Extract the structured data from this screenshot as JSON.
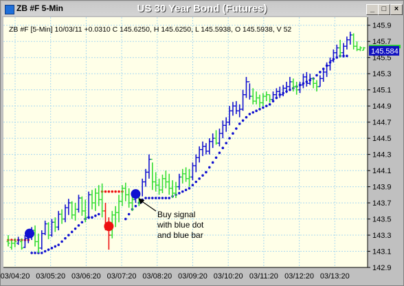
{
  "window": {
    "title": "ZB #F 5-Min",
    "chart_title": "US 30 Year  Bond (Futures)",
    "min_glyph": "_",
    "max_glyph": "□",
    "close_glyph": "×"
  },
  "info_line": "ZB #F [5-Min] 10/03/11  +0.0310 C 145.6250, H 145.6250, L 145.5938, O 145.5938, V 52",
  "annotation": {
    "lines": [
      "Buy signal",
      "with blue dot",
      "and blue bar"
    ]
  },
  "colors": {
    "background": "#ffffe8",
    "grid": "#a8d8f0",
    "up_bar": "#1010d0",
    "neutral_bar": "#33dd33",
    "down_bar": "#ee1010",
    "stop_blue": "#1010d0",
    "stop_red": "#ee1010",
    "price_tag": "#1010c0"
  },
  "chart_data": {
    "type": "bar",
    "y_ticks": [
      "142.9",
      "143.1",
      "143.3",
      "143.5",
      "143.7",
      "143.9",
      "144.1",
      "144.3",
      "144.5",
      "144.7",
      "144.9",
      "145.1",
      "145.3",
      "145.5",
      "145.7",
      "145.9"
    ],
    "x_ticks": [
      "03/04:20",
      "03/05:20",
      "03/06:20",
      "03/07:20",
      "03/08:20",
      "03/09:20",
      "03/10:20",
      "03/11:20",
      "03/12:20",
      "03/13:20"
    ],
    "ylim": [
      142.9,
      146.0
    ],
    "last_price_label": "145.584",
    "last_price": 145.584,
    "green_line_price": 145.64,
    "signals": [
      {
        "type": "sell",
        "color": "red",
        "bar": 30,
        "price": 143.41
      },
      {
        "type": "buy",
        "color": "blue",
        "bar": 38,
        "price": 143.81
      }
    ],
    "bars": [
      [
        143.3,
        143.16,
        143.22,
        143.2,
        "g"
      ],
      [
        143.24,
        143.12,
        143.15,
        143.2,
        "g"
      ],
      [
        143.26,
        143.15,
        143.2,
        143.22,
        "g"
      ],
      [
        143.28,
        143.18,
        143.2,
        143.24,
        "b"
      ],
      [
        143.26,
        143.12,
        143.22,
        143.14,
        "g"
      ],
      [
        143.3,
        143.14,
        143.15,
        143.26,
        "b"
      ],
      [
        143.33,
        143.2,
        143.26,
        143.3,
        "b"
      ],
      [
        143.4,
        143.24,
        143.28,
        143.36,
        "b"
      ],
      [
        143.42,
        143.16,
        143.36,
        143.22,
        "g"
      ],
      [
        143.32,
        143.08,
        143.22,
        143.14,
        "g"
      ],
      [
        143.36,
        143.12,
        143.14,
        143.32,
        "b"
      ],
      [
        143.48,
        143.3,
        143.32,
        143.44,
        "b"
      ],
      [
        143.46,
        143.25,
        143.44,
        143.3,
        "g"
      ],
      [
        143.5,
        143.28,
        143.3,
        143.46,
        "b"
      ],
      [
        143.52,
        143.34,
        143.46,
        143.4,
        "g"
      ],
      [
        143.6,
        143.36,
        143.4,
        143.56,
        "b"
      ],
      [
        143.62,
        143.44,
        143.56,
        143.5,
        "g"
      ],
      [
        143.68,
        143.46,
        143.5,
        143.64,
        "b"
      ],
      [
        143.75,
        143.55,
        143.64,
        143.7,
        "b"
      ],
      [
        143.72,
        143.5,
        143.7,
        143.55,
        "g"
      ],
      [
        143.7,
        143.48,
        143.55,
        143.62,
        "g"
      ],
      [
        143.8,
        143.58,
        143.62,
        143.76,
        "b"
      ],
      [
        143.78,
        143.54,
        143.76,
        143.6,
        "g"
      ],
      [
        143.74,
        143.46,
        143.6,
        143.52,
        "g"
      ],
      [
        143.84,
        143.5,
        143.52,
        143.8,
        "b"
      ],
      [
        143.86,
        143.62,
        143.8,
        143.7,
        "g"
      ],
      [
        143.88,
        143.6,
        143.7,
        143.82,
        "g"
      ],
      [
        143.92,
        143.66,
        143.82,
        143.74,
        "g"
      ],
      [
        143.94,
        143.52,
        143.74,
        143.6,
        "g"
      ],
      [
        143.7,
        143.36,
        143.6,
        143.42,
        "r"
      ],
      [
        143.52,
        143.12,
        143.42,
        143.3,
        "r"
      ],
      [
        143.6,
        143.26,
        143.3,
        143.55,
        "g"
      ],
      [
        143.66,
        143.4,
        143.55,
        143.58,
        "g"
      ],
      [
        143.8,
        143.46,
        143.58,
        143.72,
        "g"
      ],
      [
        143.92,
        143.66,
        143.72,
        143.88,
        "g"
      ],
      [
        143.95,
        143.72,
        143.88,
        143.8,
        "g"
      ],
      [
        143.88,
        143.64,
        143.8,
        143.7,
        "g"
      ],
      [
        143.8,
        143.6,
        143.7,
        143.74,
        "g"
      ],
      [
        143.86,
        143.7,
        143.74,
        143.82,
        "b"
      ],
      [
        143.8,
        143.66,
        143.82,
        143.7,
        "g"
      ],
      [
        144.0,
        143.78,
        143.7,
        143.96,
        "b"
      ],
      [
        144.12,
        143.9,
        143.96,
        144.08,
        "b"
      ],
      [
        144.3,
        144.0,
        144.08,
        144.24,
        "b"
      ],
      [
        144.2,
        143.86,
        144.24,
        143.96,
        "g"
      ],
      [
        144.08,
        143.84,
        143.96,
        143.92,
        "g"
      ],
      [
        144.0,
        143.8,
        143.92,
        143.86,
        "g"
      ],
      [
        144.05,
        143.82,
        143.86,
        144.0,
        "g"
      ],
      [
        144.1,
        143.88,
        144.0,
        143.96,
        "g"
      ],
      [
        144.06,
        143.8,
        143.96,
        143.88,
        "g"
      ],
      [
        143.98,
        143.76,
        143.88,
        143.82,
        "g"
      ],
      [
        143.96,
        143.76,
        143.82,
        143.9,
        "g"
      ],
      [
        144.06,
        143.86,
        143.9,
        144.02,
        "b"
      ],
      [
        144.12,
        143.94,
        144.02,
        144.06,
        "g"
      ],
      [
        144.14,
        143.96,
        144.06,
        144.0,
        "g"
      ],
      [
        144.12,
        143.9,
        144.0,
        144.02,
        "g"
      ],
      [
        144.2,
        143.98,
        144.02,
        144.16,
        "b"
      ],
      [
        144.3,
        144.08,
        144.16,
        144.26,
        "b"
      ],
      [
        144.4,
        144.2,
        144.26,
        144.36,
        "b"
      ],
      [
        144.46,
        144.28,
        144.36,
        144.4,
        "b"
      ],
      [
        144.44,
        144.3,
        144.4,
        144.34,
        "b"
      ],
      [
        144.5,
        144.3,
        144.34,
        144.46,
        "b"
      ],
      [
        144.56,
        144.38,
        144.46,
        144.5,
        "b"
      ],
      [
        144.6,
        144.42,
        144.5,
        144.44,
        "g"
      ],
      [
        144.62,
        144.4,
        144.44,
        144.56,
        "b"
      ],
      [
        144.72,
        144.5,
        144.56,
        144.66,
        "b"
      ],
      [
        144.76,
        144.58,
        144.66,
        144.7,
        "b"
      ],
      [
        144.9,
        144.66,
        144.7,
        144.84,
        "b"
      ],
      [
        144.95,
        144.78,
        144.84,
        144.9,
        "b"
      ],
      [
        144.96,
        144.8,
        144.9,
        144.84,
        "b"
      ],
      [
        144.92,
        144.76,
        144.84,
        144.86,
        "b"
      ],
      [
        145.1,
        144.84,
        144.86,
        145.04,
        "b"
      ],
      [
        145.26,
        145.0,
        145.04,
        145.2,
        "b"
      ],
      [
        145.18,
        144.98,
        145.2,
        145.02,
        "b"
      ],
      [
        145.12,
        144.92,
        145.02,
        144.96,
        "g"
      ],
      [
        145.08,
        144.92,
        144.96,
        145.0,
        "g"
      ],
      [
        145.04,
        144.88,
        145.0,
        144.94,
        "g"
      ],
      [
        145.06,
        144.9,
        144.94,
        145.02,
        "g"
      ],
      [
        145.08,
        144.96,
        145.02,
        145.04,
        "g"
      ],
      [
        145.04,
        144.94,
        145.04,
        144.98,
        "g"
      ],
      [
        145.08,
        144.96,
        144.98,
        145.04,
        "b"
      ],
      [
        145.12,
        145.0,
        145.04,
        145.08,
        "b"
      ],
      [
        145.14,
        145.0,
        145.08,
        145.04,
        "b"
      ],
      [
        145.16,
        145.02,
        145.04,
        145.12,
        "b"
      ],
      [
        145.2,
        145.06,
        145.12,
        145.14,
        "b"
      ],
      [
        145.26,
        145.1,
        145.14,
        145.2,
        "b"
      ],
      [
        145.24,
        145.08,
        145.2,
        145.14,
        "g"
      ],
      [
        145.2,
        145.04,
        145.14,
        145.1,
        "g"
      ],
      [
        145.2,
        145.06,
        145.1,
        145.16,
        "b"
      ],
      [
        145.3,
        145.12,
        145.16,
        145.26,
        "b"
      ],
      [
        145.32,
        145.14,
        145.26,
        145.18,
        "b"
      ],
      [
        145.3,
        145.16,
        145.18,
        145.24,
        "b"
      ],
      [
        145.24,
        145.12,
        145.24,
        145.18,
        "g"
      ],
      [
        145.22,
        145.08,
        145.18,
        145.14,
        "g"
      ],
      [
        145.28,
        145.14,
        145.14,
        145.24,
        "b"
      ],
      [
        145.36,
        145.2,
        145.24,
        145.32,
        "b"
      ],
      [
        145.44,
        145.26,
        145.32,
        145.4,
        "b"
      ],
      [
        145.5,
        145.34,
        145.4,
        145.46,
        "b"
      ],
      [
        145.6,
        145.44,
        145.46,
        145.56,
        "b"
      ],
      [
        145.66,
        145.5,
        145.56,
        145.62,
        "b"
      ],
      [
        145.72,
        145.5,
        145.62,
        145.56,
        "g"
      ],
      [
        145.68,
        145.5,
        145.56,
        145.64,
        "b"
      ],
      [
        145.76,
        145.6,
        145.64,
        145.72,
        "b"
      ],
      [
        145.82,
        145.66,
        145.72,
        145.78,
        "b"
      ],
      [
        145.8,
        145.6,
        145.78,
        145.64,
        "g"
      ],
      [
        145.7,
        145.58,
        145.64,
        145.6,
        "g"
      ],
      [
        145.64,
        145.58,
        145.6,
        145.62,
        "g"
      ],
      [
        145.63,
        145.59,
        145.59,
        145.62,
        "g"
      ]
    ],
    "stops": [
      [
        143.24,
        "r"
      ],
      [
        143.24,
        "r"
      ],
      [
        143.24,
        "r"
      ],
      [
        143.24,
        "r"
      ],
      [
        143.24,
        "r"
      ],
      [
        143.24,
        "r"
      ],
      [
        143.24,
        "r"
      ],
      [
        143.08,
        "b"
      ],
      [
        143.08,
        "b"
      ],
      [
        143.08,
        "b"
      ],
      [
        143.08,
        "b"
      ],
      [
        143.1,
        "b"
      ],
      [
        143.12,
        "b"
      ],
      [
        143.14,
        "b"
      ],
      [
        143.16,
        "b"
      ],
      [
        143.18,
        "b"
      ],
      [
        143.22,
        "b"
      ],
      [
        143.26,
        "b"
      ],
      [
        143.3,
        "b"
      ],
      [
        143.34,
        "b"
      ],
      [
        143.38,
        "b"
      ],
      [
        143.42,
        "b"
      ],
      [
        143.46,
        "b"
      ],
      [
        143.5,
        "b"
      ],
      [
        143.52,
        "b"
      ],
      [
        143.52,
        "b"
      ],
      [
        143.54,
        "b"
      ],
      [
        143.56,
        "b"
      ],
      [
        143.84,
        "r"
      ],
      [
        143.84,
        "r"
      ],
      [
        143.84,
        "r"
      ],
      [
        143.84,
        "r"
      ],
      [
        143.84,
        "r"
      ],
      [
        143.84,
        "r"
      ],
      [
        143.84,
        "r"
      ],
      [
        143.5,
        "b"
      ],
      [
        143.56,
        "b"
      ],
      [
        143.62,
        "b"
      ],
      [
        143.66,
        "b"
      ],
      [
        143.7,
        "b"
      ],
      [
        143.74,
        "b"
      ],
      [
        143.76,
        "b"
      ],
      [
        143.76,
        "b"
      ],
      [
        143.76,
        "b"
      ],
      [
        143.76,
        "b"
      ],
      [
        143.76,
        "b"
      ],
      [
        143.76,
        "b"
      ],
      [
        143.76,
        "b"
      ],
      [
        143.76,
        "b"
      ],
      [
        143.78,
        "b"
      ],
      [
        143.8,
        "b"
      ],
      [
        143.82,
        "b"
      ],
      [
        143.84,
        "b"
      ],
      [
        143.86,
        "b"
      ],
      [
        143.88,
        "b"
      ],
      [
        143.92,
        "b"
      ],
      [
        143.96,
        "b"
      ],
      [
        144.0,
        "b"
      ],
      [
        144.04,
        "b"
      ],
      [
        144.08,
        "b"
      ],
      [
        144.14,
        "b"
      ],
      [
        144.2,
        "b"
      ],
      [
        144.26,
        "b"
      ],
      [
        144.32,
        "b"
      ],
      [
        144.38,
        "b"
      ],
      [
        144.44,
        "b"
      ],
      [
        144.5,
        "b"
      ],
      [
        144.56,
        "b"
      ],
      [
        144.62,
        "b"
      ],
      [
        144.68,
        "b"
      ],
      [
        144.72,
        "b"
      ],
      [
        144.76,
        "b"
      ],
      [
        144.8,
        "b"
      ],
      [
        144.82,
        "b"
      ],
      [
        144.84,
        "b"
      ],
      [
        144.86,
        "b"
      ],
      [
        144.88,
        "b"
      ],
      [
        144.9,
        "b"
      ],
      [
        144.92,
        "b"
      ],
      [
        144.96,
        "b"
      ],
      [
        145.0,
        "b"
      ],
      [
        145.04,
        "b"
      ],
      [
        145.06,
        "b"
      ],
      [
        145.08,
        "b"
      ],
      [
        145.1,
        "b"
      ],
      [
        145.12,
        "b"
      ],
      [
        145.14,
        "b"
      ],
      [
        145.16,
        "b"
      ],
      [
        145.18,
        "b"
      ],
      [
        145.2,
        "b"
      ],
      [
        145.22,
        "b"
      ],
      [
        145.24,
        "b"
      ],
      [
        145.28,
        "b"
      ],
      [
        145.32,
        "b"
      ],
      [
        145.36,
        "b"
      ],
      [
        145.4,
        "b"
      ],
      [
        145.44,
        "b"
      ],
      [
        145.48,
        "b"
      ],
      [
        145.5,
        "b"
      ],
      [
        145.52,
        "b"
      ],
      [
        145.52,
        "b"
      ],
      [
        145.52,
        "b"
      ]
    ]
  }
}
